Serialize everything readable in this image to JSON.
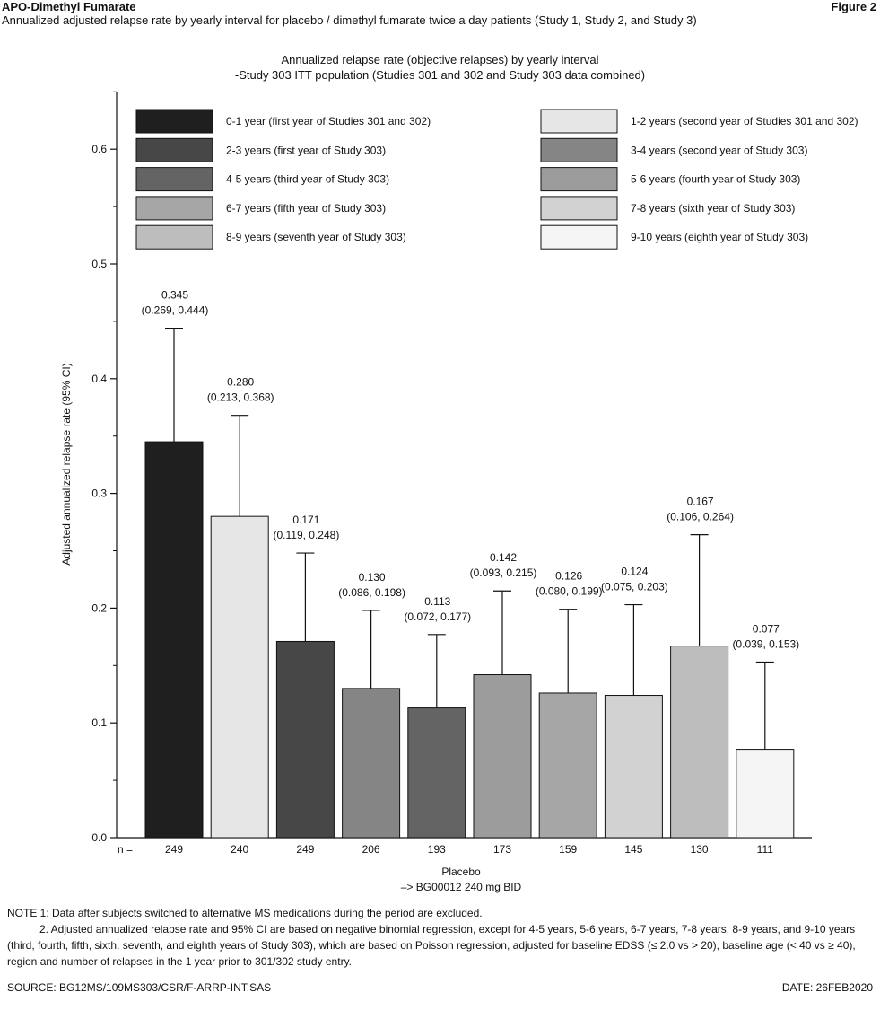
{
  "header": {
    "product": "APO-Dimethyl Fumarate",
    "figure_label": "Figure 2",
    "subtitle": "Annualized adjusted relapse rate by yearly interval for placebo / dimethyl fumarate twice a day patients (Study 1, Study 2, and Study 3)"
  },
  "chart_data": {
    "type": "bar",
    "title": [
      "Annualized relapse rate (objective relapses) by yearly interval",
      "-Study 303 ITT population (Studies 301 and 302 and Study 303 data combined)"
    ],
    "ylabel": "Adjusted annualized relapse rate (95% CI)",
    "xlabel": [
      "Placebo",
      "–> BG00012 240 mg BID"
    ],
    "ylim": [
      0,
      0.6
    ],
    "yticks": [
      0.0,
      0.1,
      0.2,
      0.3,
      0.4,
      0.5,
      0.6
    ],
    "ytick_labels": [
      "0.0",
      "0.1",
      "0.2",
      "0.3",
      "0.4",
      "0.5",
      "0.6"
    ],
    "n_label": "n =",
    "legend_placement": "top",
    "grid": false,
    "bars": [
      {
        "legend": "0-1 year (first year of Studies 301 and 302)",
        "value": 0.345,
        "value_label": "0.345",
        "ci": [
          0.269,
          0.444
        ],
        "ci_label": "(0.269, 0.444)",
        "n": "249",
        "color": "#1f1f1f"
      },
      {
        "legend": "1-2 years (second year of Studies 301 and 302)",
        "value": 0.28,
        "value_label": "0.280",
        "ci": [
          0.213,
          0.368
        ],
        "ci_label": "(0.213, 0.368)",
        "n": "240",
        "color": "#e6e6e6"
      },
      {
        "legend": "2-3 years (first year of Study 303)",
        "value": 0.171,
        "value_label": "0.171",
        "ci": [
          0.119,
          0.248
        ],
        "ci_label": "(0.119, 0.248)",
        "n": "249",
        "color": "#474747"
      },
      {
        "legend": "3-4 years (second year of Study 303)",
        "value": 0.13,
        "value_label": "0.130",
        "ci": [
          0.086,
          0.198
        ],
        "ci_label": "(0.086, 0.198)",
        "n": "206",
        "color": "#858585"
      },
      {
        "legend": "4-5 years (third year of Study 303)",
        "value": 0.113,
        "value_label": "0.113",
        "ci": [
          0.072,
          0.177
        ],
        "ci_label": "(0.072, 0.177)",
        "n": "193",
        "color": "#646464"
      },
      {
        "legend": "5-6 years (fourth year of Study 303)",
        "value": 0.142,
        "value_label": "0.142",
        "ci": [
          0.093,
          0.215
        ],
        "ci_label": "(0.093, 0.215)",
        "n": "173",
        "color": "#9c9c9c"
      },
      {
        "legend": "6-7 years (fifth year of Study 303)",
        "value": 0.126,
        "value_label": "0.126",
        "ci": [
          0.08,
          0.199
        ],
        "ci_label": "(0.080, 0.199)",
        "n": "159",
        "color": "#a6a6a6"
      },
      {
        "legend": "7-8 years (sixth year of Study 303)",
        "value": 0.124,
        "value_label": "0.124",
        "ci": [
          0.075,
          0.203
        ],
        "ci_label": "(0.075, 0.203)",
        "n": "145",
        "color": "#d2d2d2"
      },
      {
        "legend": "8-9 years (seventh year of Study 303)",
        "value": 0.167,
        "value_label": "0.167",
        "ci": [
          0.106,
          0.264
        ],
        "ci_label": "(0.106, 0.264)",
        "n": "130",
        "color": "#bdbdbd"
      },
      {
        "legend": "9-10 years (eighth year of Study 303)",
        "value": 0.077,
        "value_label": "0.077",
        "ci": [
          0.039,
          0.153
        ],
        "ci_label": "(0.039, 0.153)",
        "n": "111",
        "color": "#f5f5f5"
      }
    ]
  },
  "footnotes": {
    "note1": "NOTE 1: Data after subjects switched to alternative MS medications during the period are excluded.",
    "note2": "2. Adjusted annualized relapse rate and 95% CI are based on negative binomial regression, except for 4-5 years, 5-6 years, 6-7 years, 7-8 years, 8-9 years, and 9-10 years (third, fourth, fifth, sixth, seventh, and eighth years of Study 303), which are based on Poisson regression, adjusted for baseline EDSS (≤ 2.0 vs > 20), baseline age (< 40 vs ≥ 40), region and number of relapses in the 1 year prior to 301/302 study entry."
  },
  "footer": {
    "source": "SOURCE: BG12MS/109MS303/CSR/F-ARRP-INT.SAS",
    "date": "DATE: 26FEB2020"
  }
}
